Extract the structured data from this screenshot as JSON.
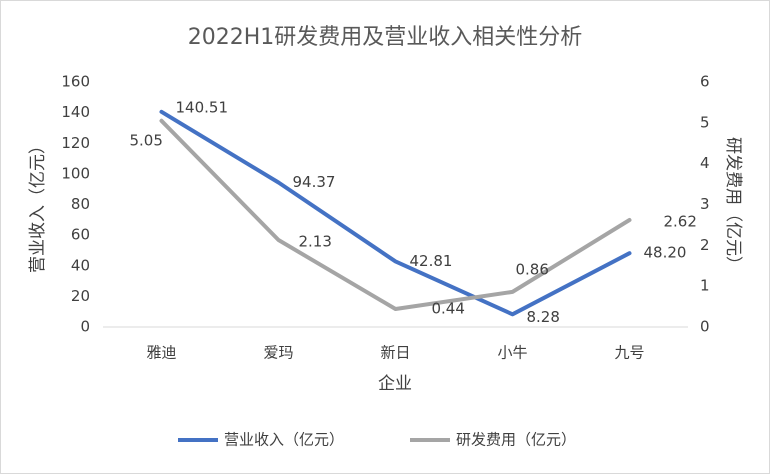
{
  "chart_data": {
    "type": "line",
    "title": "2022H1研发费用及营业收入相关性分析",
    "x_label": "企业",
    "y_label": "营业收入（亿元）",
    "y2_label": "研发费用（亿元）",
    "categories": [
      "雅迪",
      "爱玛",
      "新日",
      "小牛",
      "九号"
    ],
    "series": [
      {
        "name": "营业收入（亿元）",
        "color": "#4472c4",
        "values": [
          140.51,
          94.37,
          42.81,
          8.28,
          48.2
        ],
        "value_labels": [
          "140.51",
          "94.37",
          "42.81",
          "8.28",
          "48.20"
        ]
      },
      {
        "name": "研发费用（亿元）",
        "color": "#a5a5a5",
        "axis": "y2",
        "values": [
          5.05,
          2.13,
          0.44,
          0.86,
          2.62
        ]
      }
    ],
    "ylim": [
      0,
      160
    ],
    "yticks": [
      0,
      20,
      40,
      60,
      80,
      100,
      120,
      140,
      160
    ],
    "y2lim": [
      0,
      6
    ],
    "y2ticks": [
      0,
      1,
      2,
      3,
      4,
      5,
      6
    ],
    "legend": "bottom"
  }
}
